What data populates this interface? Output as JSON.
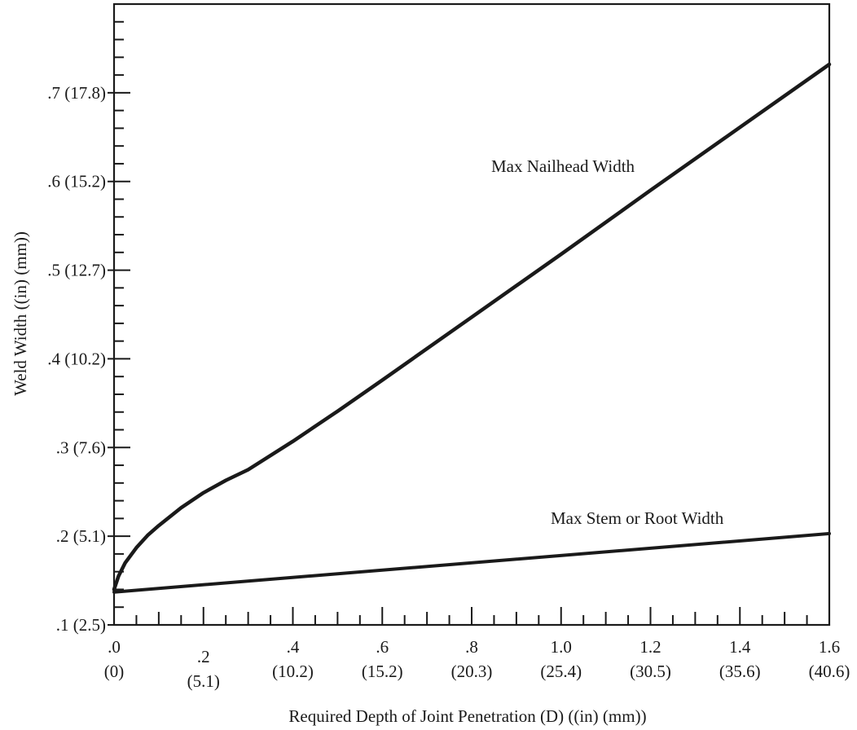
{
  "chart_data": {
    "type": "line",
    "title": "",
    "xlabel": "Required Depth of Joint Penetration (D) ((in) (mm))",
    "ylabel": "Weld Width ((in) (mm))",
    "xlim": [
      0,
      1.6
    ],
    "ylim": [
      0.1,
      0.8
    ],
    "grid": false,
    "x_ticks": [
      {
        "value": 0.0,
        "label": ".0",
        "sublabel": "(0)"
      },
      {
        "value": 0.2,
        "label": ".2",
        "sublabel": "(5.1)"
      },
      {
        "value": 0.4,
        "label": ".4",
        "sublabel": "(10.2)"
      },
      {
        "value": 0.6,
        "label": ".6",
        "sublabel": "(15.2)"
      },
      {
        "value": 0.8,
        "label": ".8",
        "sublabel": "(20.3)"
      },
      {
        "value": 1.0,
        "label": "1.0",
        "sublabel": "(25.4)"
      },
      {
        "value": 1.2,
        "label": "1.2",
        "sublabel": "(30.5)"
      },
      {
        "value": 1.4,
        "label": "1.4",
        "sublabel": "(35.6)"
      },
      {
        "value": 1.6,
        "label": "1.6",
        "sublabel": "(40.6)"
      }
    ],
    "y_ticks": [
      {
        "value": 0.1,
        "label": ".1 (2.5)"
      },
      {
        "value": 0.2,
        "label": ".2 (5.1)"
      },
      {
        "value": 0.3,
        "label": ".3 (7.6)"
      },
      {
        "value": 0.4,
        "label": ".4 (10.2)"
      },
      {
        "value": 0.5,
        "label": ".5 (12.7)"
      },
      {
        "value": 0.6,
        "label": ".6 (15.2)"
      },
      {
        "value": 0.7,
        "label": ".7 (17.8)"
      }
    ],
    "series": [
      {
        "name": "Max Nailhead Width",
        "x": [
          0.0,
          0.01,
          0.025,
          0.05,
          0.075,
          0.1,
          0.15,
          0.2,
          0.25,
          0.3,
          0.4,
          0.5,
          0.6,
          0.8,
          1.0,
          1.2,
          1.4,
          1.6
        ],
        "values": [
          0.14,
          0.155,
          0.17,
          0.187,
          0.201,
          0.212,
          0.232,
          0.249,
          0.263,
          0.275,
          0.307,
          0.341,
          0.376,
          0.447,
          0.518,
          0.59,
          0.661,
          0.732
        ]
      },
      {
        "name": "Max Stem or Root Width",
        "x": [
          0.0,
          1.6
        ],
        "values": [
          0.137,
          0.203
        ]
      }
    ],
    "color": "#1a1a1a"
  }
}
